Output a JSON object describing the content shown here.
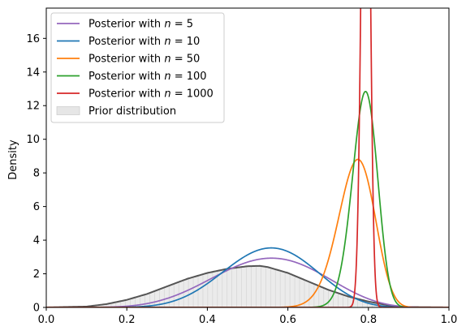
{
  "chart_data": {
    "type": "line",
    "title": "",
    "xlabel": "",
    "ylabel": "Density",
    "xlim": [
      0.0,
      1.0
    ],
    "ylim": [
      0,
      17.8
    ],
    "x_ticks": [
      0.0,
      0.2,
      0.4,
      0.6,
      0.8,
      1.0
    ],
    "x_tick_labels": [
      "0.0",
      "0.2",
      "0.4",
      "0.6",
      "0.8",
      "1.0"
    ],
    "y_ticks": [
      0,
      2,
      4,
      6,
      8,
      10,
      12,
      14,
      16
    ],
    "y_tick_labels": [
      "0",
      "2",
      "4",
      "6",
      "8",
      "10",
      "12",
      "14",
      "16"
    ],
    "grid": false,
    "legend_position": "top-left",
    "legend": [
      {
        "prefix": "Posterior with ",
        "var": "n",
        "eq": " = ",
        "num": "5",
        "color": "#9467bd",
        "kind": "line"
      },
      {
        "prefix": "Posterior with ",
        "var": "n",
        "eq": " = ",
        "num": "10",
        "color": "#1f77b4",
        "kind": "line"
      },
      {
        "prefix": "Posterior with ",
        "var": "n",
        "eq": " = ",
        "num": "50",
        "color": "#ff7f0e",
        "kind": "line"
      },
      {
        "prefix": "Posterior with ",
        "var": "n",
        "eq": " = ",
        "num": "100",
        "color": "#2ca02c",
        "kind": "line"
      },
      {
        "prefix": "Posterior with ",
        "var": "n",
        "eq": " = ",
        "num": "1000",
        "color": "#d62728",
        "kind": "line"
      },
      {
        "prefix": "Prior distribution",
        "var": "",
        "eq": "",
        "num": "",
        "color": "#e6e6e6",
        "kind": "patch"
      }
    ],
    "series": [
      {
        "key": "prior",
        "kind": "filled-density",
        "color": "#555555",
        "fill": "#ebebeb",
        "x": [
          0.0,
          0.1,
          0.15,
          0.2,
          0.25,
          0.3,
          0.35,
          0.4,
          0.45,
          0.5,
          0.53,
          0.55,
          0.6,
          0.65,
          0.7,
          0.75,
          0.8,
          0.85,
          0.9,
          1.0
        ],
        "y": [
          0,
          0.05,
          0.2,
          0.45,
          0.8,
          1.25,
          1.7,
          2.05,
          2.3,
          2.45,
          2.47,
          2.4,
          2.05,
          1.55,
          1.05,
          0.65,
          0.35,
          0.12,
          0.02,
          0
        ]
      },
      {
        "key": "n5",
        "kind": "beta",
        "a": 7.6,
        "b": 6.2,
        "color": "#9467bd"
      },
      {
        "key": "n10",
        "kind": "beta",
        "a": 11.0,
        "b": 8.9,
        "color": "#1f77b4"
      },
      {
        "key": "n50",
        "kind": "beta",
        "a": 66.0,
        "b": 20.0,
        "color": "#ff7f0e"
      },
      {
        "key": "n100",
        "kind": "beta",
        "a": 135.0,
        "b": 36.0,
        "color": "#2ca02c"
      },
      {
        "key": "n1000",
        "kind": "beta",
        "a": 1380.0,
        "b": 360.0,
        "color": "#d62728"
      }
    ]
  }
}
